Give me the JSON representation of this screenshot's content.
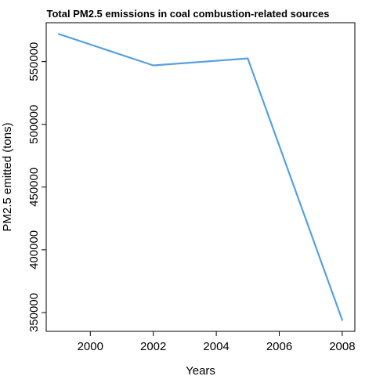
{
  "chart_data": {
    "type": "line",
    "title": "Total PM2.5 emissions in coal combustion-related sources",
    "xlabel": "Years",
    "ylabel": "PM2.5 emitted (tons)",
    "x": [
      1999,
      2002,
      2005,
      2008
    ],
    "series": [
      {
        "values": [
          572000,
          547000,
          552500,
          344000
        ]
      }
    ],
    "xlim": [
      1998.6,
      2008.4
    ],
    "ylim": [
      335000,
      581000
    ],
    "xticks": [
      2000,
      2002,
      2004,
      2006,
      2008
    ],
    "xtick_labels": [
      "2000",
      "2002",
      "2004",
      "2006",
      "2008"
    ],
    "yticks": [
      350000,
      400000,
      450000,
      500000,
      550000
    ],
    "ytick_labels": [
      "350000",
      "400000",
      "450000",
      "500000",
      "550000"
    ],
    "grid": false,
    "colors": {
      "line": "#56a0e0",
      "axis": "#000000"
    }
  }
}
